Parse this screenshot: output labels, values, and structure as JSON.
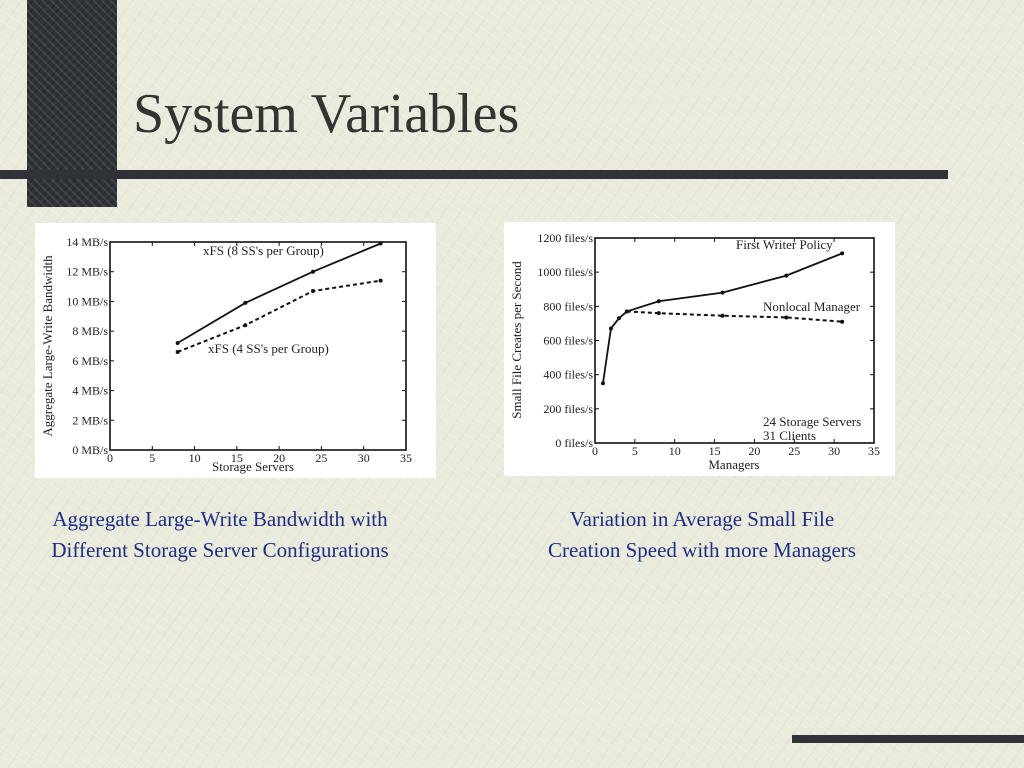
{
  "slide": {
    "title": "System Variables"
  },
  "captions": {
    "left": [
      "Aggregate Large-Write Bandwidth with",
      "Different Storage Server Configurations"
    ],
    "right": [
      "Variation in Average Small File",
      "Creation Speed with more Managers"
    ]
  },
  "chart_data": [
    {
      "type": "line",
      "xlabel": "Storage Servers",
      "ylabel": "Aggregate Large-Write Bandwidth",
      "xlim": [
        0,
        35
      ],
      "ylim": [
        0,
        14
      ],
      "x_ticks": [
        "0",
        "5",
        "10",
        "15",
        "20",
        "25",
        "30",
        "35"
      ],
      "y_ticks": [
        "0 MB/s",
        "2 MB/s",
        "4 MB/s",
        "6 MB/s",
        "8 MB/s",
        "10 MB/s",
        "12 MB/s",
        "14 MB/s"
      ],
      "grid": false,
      "series": [
        {
          "name": "xFS (8 SS's per Group)",
          "style": "solid",
          "x": [
            8,
            16,
            24,
            32
          ],
          "y": [
            7.2,
            9.9,
            12.0,
            13.9
          ]
        },
        {
          "name": "xFS (4 SS's per Group)",
          "style": "dashed",
          "x": [
            8,
            16,
            24,
            32
          ],
          "y": [
            6.6,
            8.4,
            10.7,
            11.4
          ]
        }
      ]
    },
    {
      "type": "line",
      "xlabel": "Managers",
      "ylabel": "Small File Creates per Second",
      "xlim": [
        0,
        35
      ],
      "ylim": [
        0,
        1200
      ],
      "x_ticks": [
        "0",
        "5",
        "10",
        "15",
        "20",
        "25",
        "30",
        "35"
      ],
      "y_ticks": [
        "0 files/s",
        "200 files/s",
        "400 files/s",
        "600 files/s",
        "800 files/s",
        "1000 files/s",
        "1200 files/s"
      ],
      "grid": false,
      "annotations": [
        "24 Storage Servers",
        "31 Clients"
      ],
      "series": [
        {
          "name": "First Writer Policy",
          "style": "solid",
          "x": [
            1,
            2,
            3,
            4,
            8,
            16,
            24,
            31
          ],
          "y": [
            350,
            670,
            730,
            770,
            830,
            880,
            980,
            1110
          ]
        },
        {
          "name": "Nonlocal Manager",
          "style": "dashed",
          "x": [
            4,
            8,
            16,
            24,
            31
          ],
          "y": [
            770,
            760,
            745,
            735,
            710
          ]
        }
      ]
    }
  ]
}
